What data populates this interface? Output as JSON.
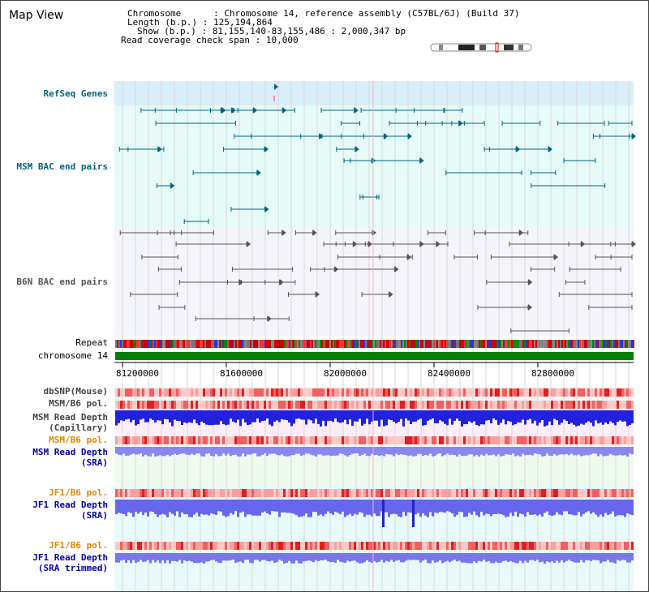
{
  "header": {
    "title": "Map View",
    "chromosome_label": "Chromosome",
    "chromosome_value": "Chromosome 14, reference assembly (C57BL/6J) (Build 37)",
    "length_label": "Length (b.p.)",
    "length_value": "125,194,864",
    "show_label": "Show (b.p.)",
    "show_value": "81,155,140-83,155,486 : 2,000,347 bp",
    "coverage_label": "Read coverage check span",
    "coverage_value": "10,000"
  },
  "tracks": {
    "refseq": "RefSeq Genes",
    "msm_bac": "MSM BAC end pairs",
    "b6n_bac": "B6N BAC end pairs",
    "repeat": "Repeat",
    "chromosome": "chromosome 14",
    "dbsnp": "dbSNP(Mouse)",
    "msm_b6_pol": "MSM/B6 pol.",
    "msm_depth_cap_1": "MSM Read Depth",
    "msm_depth_cap_2": "(Capillary)",
    "msm_b6_pol_2": "MSM/B6 pol.",
    "msm_depth_sra_1": "MSM Read Depth",
    "msm_depth_sra_2": "(SRA)",
    "jf1_pol_1": "JF1/B6 pol.",
    "jf1_depth_1": "JF1 Read Depth",
    "jf1_depth_2": "(SRA)",
    "jf1_pol_2": "JF1/B6 pol.",
    "jf1_trim_1": "JF1 Read Depth",
    "jf1_trim_2": "(SRA trimmed)"
  },
  "axis": {
    "ticks": [
      "81200000",
      "81600000",
      "82000000",
      "82400000",
      "82800000"
    ]
  },
  "colors": {
    "refseq_bg": "#d8eef8",
    "msm_bg": "#e6faf8",
    "b6n_bg": "#f4f4fb",
    "lower_bg": "#e8fafa",
    "label_teal": "#006680",
    "label_blue": "#0000aa",
    "label_orange": "#e08a00",
    "chrom_green": "#008000"
  }
}
